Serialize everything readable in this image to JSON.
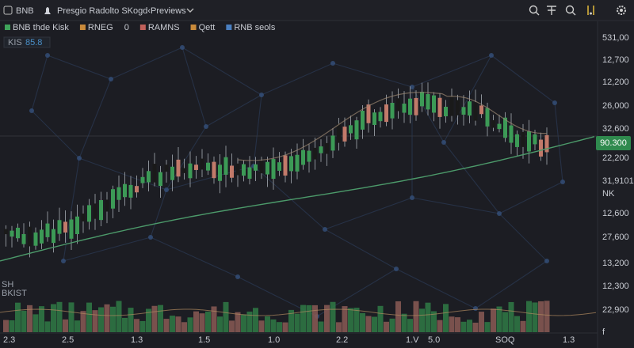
{
  "toolbar": {
    "symbol": "BNB",
    "title": "Presgio Radolto SKogd‹Previews"
  },
  "legend": [
    {
      "label": "BNB thde Kisk",
      "color": "#3fa35a"
    },
    {
      "label": "RNEG",
      "color": "#c98a3a"
    },
    {
      "label": "0"
    },
    {
      "label": "RAMNS",
      "color": "#c0605a"
    },
    {
      "label": "Qett",
      "color": "#c98a3a"
    },
    {
      "label": "RNB seols",
      "color": "#4a7fc0"
    }
  ],
  "indicator": {
    "name": "KIS",
    "value": "85.8"
  },
  "price_labels": [
    "531,00",
    "12,700",
    "12,200",
    "26,000",
    "32,600",
    "22,200",
    "31,9101",
    "NK",
    "12,600",
    "27,600",
    "13,200",
    "12,300",
    "22,900",
    "f"
  ],
  "current_price": "90.300",
  "side_labels": [
    "SH",
    "BKIST"
  ],
  "time_labels": [
    "2.3",
    "2.5",
    "1.3",
    "1.5",
    "1.0",
    "2.2",
    "1.V",
    "5.0",
    "SOQ",
    "1.3"
  ]
}
